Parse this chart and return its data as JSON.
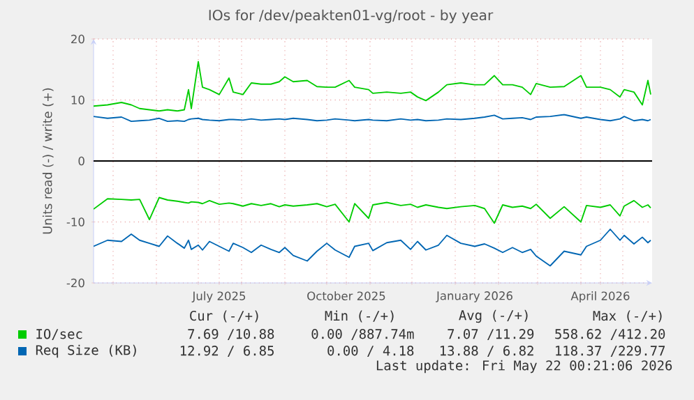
{
  "chart_data": {
    "type": "line",
    "title": "IOs for /dev/peakten01-vg/root - by year",
    "ylabel": "Units read (-) / write (+)",
    "xlim": [
      "2025-04-17",
      "2026-05-22"
    ],
    "ylim": [
      -20,
      20
    ],
    "yticks": [
      -20,
      -10,
      0,
      10,
      20
    ],
    "xticks": [
      {
        "value": "2025-05-01",
        "label": null
      },
      {
        "value": "2025-06-01",
        "label": null
      },
      {
        "value": "2025-07-01",
        "label": null
      },
      {
        "value": "2025-07-16",
        "label": "July 2025"
      },
      {
        "value": "2025-08-01",
        "label": null
      },
      {
        "value": "2025-09-01",
        "label": null
      },
      {
        "value": "2025-10-01",
        "label": null
      },
      {
        "value": "2025-10-15",
        "label": "October 2025"
      },
      {
        "value": "2025-11-01",
        "label": null
      },
      {
        "value": "2025-12-01",
        "label": null
      },
      {
        "value": "2026-01-01",
        "label": null
      },
      {
        "value": "2026-01-15",
        "label": "January 2026"
      },
      {
        "value": "2026-02-01",
        "label": null
      },
      {
        "value": "2026-03-01",
        "label": null
      },
      {
        "value": "2026-04-01",
        "label": null
      },
      {
        "value": "2026-04-15",
        "label": "April 2026"
      },
      {
        "value": "2026-05-01",
        "label": null
      }
    ],
    "x": [
      "2025-04-17",
      "2025-04-27",
      "2025-05-07",
      "2025-05-14",
      "2025-05-20",
      "2025-05-27",
      "2025-06-03",
      "2025-06-09",
      "2025-06-16",
      "2025-06-21",
      "2025-06-24",
      "2025-06-26",
      "2025-07-01",
      "2025-07-04",
      "2025-07-09",
      "2025-07-16",
      "2025-07-23",
      "2025-07-26",
      "2025-08-02",
      "2025-08-08",
      "2025-08-15",
      "2025-08-22",
      "2025-08-28",
      "2025-09-01",
      "2025-09-07",
      "2025-09-17",
      "2025-09-24",
      "2025-10-01",
      "2025-10-07",
      "2025-10-17",
      "2025-10-21",
      "2025-10-31",
      "2025-11-03",
      "2025-11-13",
      "2025-11-23",
      "2025-11-30",
      "2025-12-05",
      "2025-12-11",
      "2025-12-20",
      "2025-12-26",
      "2026-01-05",
      "2026-01-15",
      "2026-01-22",
      "2026-01-29",
      "2026-02-04",
      "2026-02-11",
      "2026-02-18",
      "2026-02-24",
      "2026-02-28",
      "2026-03-10",
      "2026-03-20",
      "2026-04-01",
      "2026-04-05",
      "2026-04-15",
      "2026-04-22",
      "2026-04-29",
      "2026-05-02",
      "2026-05-09",
      "2026-05-15",
      "2026-05-19",
      "2026-05-21"
    ],
    "series": [
      {
        "name": "IO/sec",
        "color": "#00cc00",
        "values": [
          9.0,
          9.2,
          9.6,
          9.2,
          8.6,
          8.4,
          8.2,
          8.4,
          8.2,
          8.4,
          11.7,
          8.6,
          16.3,
          12.1,
          11.7,
          10.9,
          13.6,
          11.3,
          10.9,
          12.8,
          12.6,
          12.6,
          13.0,
          13.8,
          13.0,
          13.2,
          12.2,
          12.1,
          12.1,
          13.2,
          12.1,
          11.7,
          11.1,
          11.3,
          11.1,
          11.3,
          10.5,
          9.9,
          11.3,
          12.5,
          12.8,
          12.5,
          12.5,
          14.0,
          12.5,
          12.5,
          12.1,
          10.9,
          12.7,
          12.1,
          12.2,
          14.0,
          12.1,
          12.1,
          11.7,
          10.5,
          11.7,
          11.3,
          9.2,
          13.2,
          10.9
        ]
      },
      {
        "name": "Req Size (KB)",
        "color": "#0066b3",
        "values": [
          7.3,
          7.0,
          7.2,
          6.5,
          6.6,
          6.7,
          7.0,
          6.5,
          6.6,
          6.5,
          6.8,
          6.9,
          7.0,
          6.8,
          6.7,
          6.6,
          6.8,
          6.8,
          6.7,
          6.9,
          6.7,
          6.8,
          6.9,
          6.8,
          7.0,
          6.8,
          6.6,
          6.7,
          6.9,
          6.7,
          6.6,
          6.8,
          6.7,
          6.6,
          6.9,
          6.7,
          6.8,
          6.6,
          6.7,
          6.9,
          6.8,
          7.0,
          7.2,
          7.5,
          6.9,
          7.0,
          7.1,
          6.8,
          7.2,
          7.3,
          7.6,
          7.0,
          7.2,
          6.8,
          6.6,
          6.9,
          7.3,
          6.6,
          6.8,
          6.6,
          6.8
        ]
      },
      {
        "color": "#00cc00",
        "values": [
          -7.9,
          -6.2,
          -6.3,
          -6.4,
          -6.3,
          -9.6,
          -6.0,
          -6.4,
          -6.6,
          -6.8,
          -6.9,
          -6.7,
          -6.8,
          -7.0,
          -6.5,
          -7.1,
          -6.9,
          -7.0,
          -7.4,
          -7.0,
          -7.3,
          -7.0,
          -7.5,
          -7.2,
          -7.4,
          -7.2,
          -7.0,
          -7.5,
          -7.1,
          -10.0,
          -7.0,
          -9.4,
          -7.2,
          -6.8,
          -7.3,
          -7.1,
          -7.6,
          -7.2,
          -7.6,
          -7.8,
          -7.5,
          -7.3,
          -7.8,
          -10.2,
          -7.2,
          -7.6,
          -7.4,
          -7.8,
          -7.1,
          -9.4,
          -7.5,
          -10.0,
          -7.3,
          -7.6,
          -7.2,
          -9.0,
          -7.4,
          -6.5,
          -7.6,
          -7.2,
          -7.7
        ]
      },
      {
        "color": "#0066b3",
        "values": [
          -14.0,
          -13.0,
          -13.2,
          -12.0,
          -13.0,
          -13.5,
          -14.0,
          -12.3,
          -13.5,
          -14.3,
          -13.0,
          -14.5,
          -13.8,
          -14.6,
          -13.2,
          -14.0,
          -14.8,
          -13.5,
          -14.2,
          -15.0,
          -13.8,
          -14.5,
          -15.0,
          -14.2,
          -15.5,
          -16.4,
          -14.8,
          -13.5,
          -14.6,
          -15.8,
          -14.0,
          -13.5,
          -14.7,
          -13.4,
          -13.0,
          -14.5,
          -13.2,
          -14.6,
          -13.8,
          -12.2,
          -13.5,
          -14.0,
          -13.6,
          -14.3,
          -15.0,
          -14.2,
          -15.0,
          -14.5,
          -15.6,
          -17.2,
          -14.8,
          -15.4,
          -14.0,
          -13.0,
          -11.2,
          -13.0,
          -12.2,
          -13.6,
          -12.5,
          -13.4,
          -13.0
        ]
      }
    ],
    "ref_lines": [
      {
        "axis": "y",
        "value": 0,
        "color": "#000000"
      }
    ],
    "grid": true,
    "legend": "bottom",
    "annotations": [
      "Cur (-/+)",
      "Min (-/+)",
      "Avg (-/+)",
      "Max (-/+)",
      "7.69 /10.88",
      "0.00 /887.74m",
      "7.07 /11.29",
      "558.62 /412.20",
      "12.92 / 6.85",
      "0.00 / 4.18",
      "13.88 / 6.82",
      "118.37 /229.77",
      "Last update: Fri May 22 00:21:06 2026"
    ]
  }
}
